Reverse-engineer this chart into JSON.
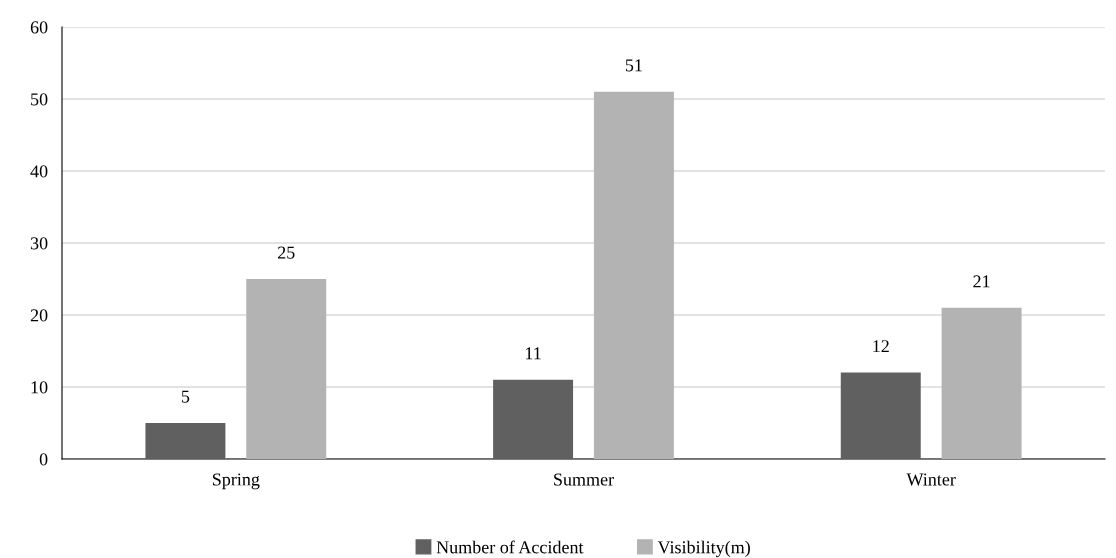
{
  "chart_data": {
    "type": "bar",
    "categories": [
      "Spring",
      "Summer",
      "Winter"
    ],
    "series": [
      {
        "name": "Number of Accident",
        "color": "#606060",
        "values": [
          5,
          11,
          12
        ]
      },
      {
        "name": "Visibility(m)",
        "color": "#b3b3b3",
        "values": [
          25,
          51,
          21
        ]
      }
    ],
    "ylim": [
      0,
      60
    ],
    "yticks": [
      0,
      10,
      20,
      30,
      40,
      50,
      60
    ],
    "grid": "y",
    "legend": "bottom",
    "data_labels": true
  }
}
